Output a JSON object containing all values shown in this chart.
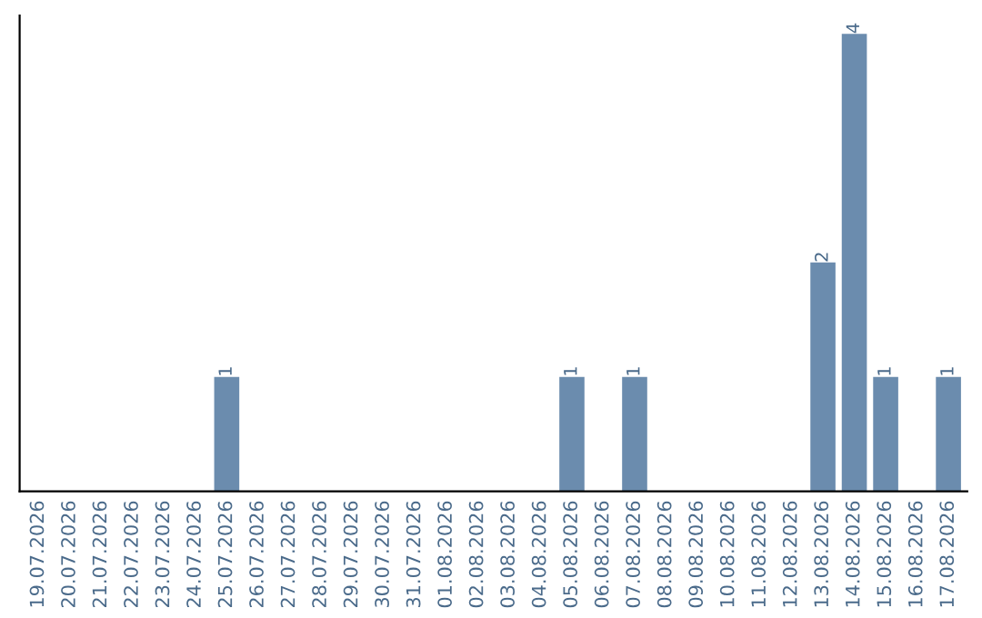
{
  "chart_data": {
    "type": "bar",
    "categories": [
      "19.07.2026",
      "20.07.2026",
      "21.07.2026",
      "22.07.2026",
      "23.07.2026",
      "24.07.2026",
      "25.07.2026",
      "26.07.2026",
      "27.07.2026",
      "28.07.2026",
      "29.07.2026",
      "30.07.2026",
      "31.07.2026",
      "01.08.2026",
      "02.08.2026",
      "03.08.2026",
      "04.08.2026",
      "05.08.2026",
      "06.08.2026",
      "07.08.2026",
      "08.08.2026",
      "09.08.2026",
      "10.08.2026",
      "11.08.2026",
      "12.08.2026",
      "13.08.2026",
      "14.08.2026",
      "15.08.2026",
      "16.08.2026",
      "17.08.2026"
    ],
    "values": [
      0,
      0,
      0,
      0,
      0,
      0,
      1,
      0,
      0,
      0,
      0,
      0,
      0,
      0,
      0,
      0,
      0,
      1,
      0,
      1,
      0,
      0,
      0,
      0,
      0,
      2,
      4,
      1,
      0,
      1
    ],
    "value_labels": [
      null,
      null,
      null,
      null,
      null,
      null,
      "1",
      null,
      null,
      null,
      null,
      null,
      null,
      null,
      null,
      null,
      null,
      "1",
      null,
      "1",
      null,
      null,
      null,
      null,
      null,
      "2",
      "4",
      "1",
      null,
      "1"
    ],
    "color": "#6b8cae",
    "tick_labels": "x",
    "grid": false,
    "legend": false
  }
}
